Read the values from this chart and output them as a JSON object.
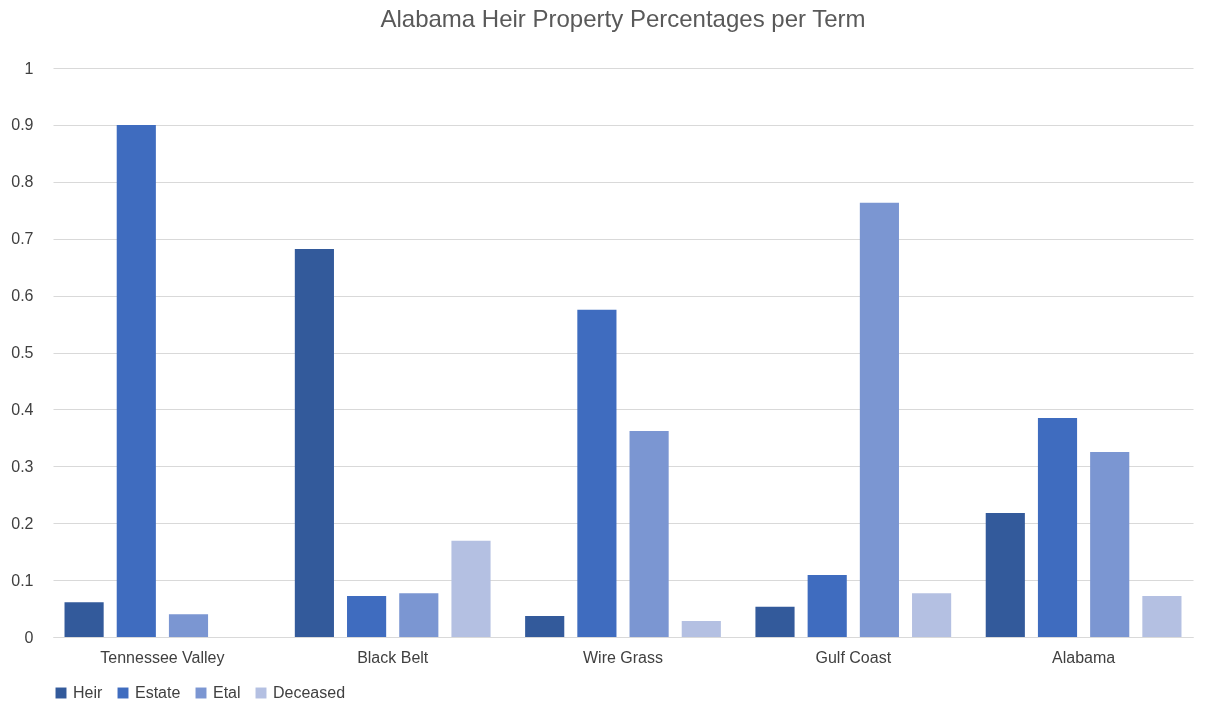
{
  "chart_data": {
    "type": "bar",
    "title": "Alabama Heir Property Percentages per Term",
    "categories": [
      "Tennessee Valley",
      "Black Belt",
      "Wire Grass",
      "Gulf Coast",
      "Alabama"
    ],
    "series": [
      {
        "name": "Heir",
        "color": "#335a9b",
        "values": [
          0.061,
          0.682,
          0.037,
          0.053,
          0.218
        ]
      },
      {
        "name": "Estate",
        "color": "#3f6cbf",
        "values": [
          0.9,
          0.072,
          0.575,
          0.109,
          0.385
        ]
      },
      {
        "name": "Etal",
        "color": "#7b96d2",
        "values": [
          0.04,
          0.077,
          0.362,
          0.763,
          0.325
        ]
      },
      {
        "name": "Deceased",
        "color": "#b4c0e2",
        "values": [
          0,
          0.169,
          0.028,
          0.077,
          0.072
        ]
      }
    ],
    "ylim": [
      0,
      1
    ],
    "yticks": [
      0,
      0.1,
      0.2,
      0.3,
      0.4,
      0.5,
      0.6,
      0.7,
      0.8,
      0.9,
      1
    ],
    "grid": true,
    "legend": "bottom"
  }
}
